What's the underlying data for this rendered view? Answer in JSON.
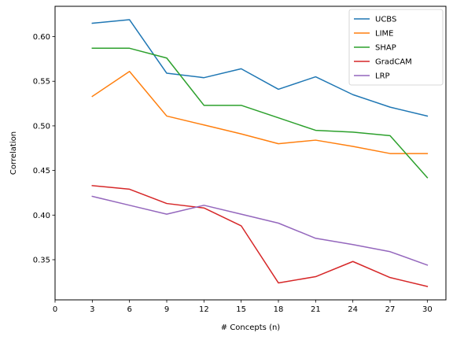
{
  "chart_data": {
    "type": "line",
    "xlabel": "# Concepts (n)",
    "ylabel": "Correlation",
    "x": [
      3,
      6,
      9,
      12,
      15,
      18,
      21,
      24,
      27,
      30
    ],
    "xticks": [
      0,
      3,
      6,
      9,
      12,
      15,
      18,
      21,
      24,
      27,
      30
    ],
    "xlim": [
      0,
      31.5
    ],
    "yticks": [
      0.35,
      0.4,
      0.45,
      0.5,
      0.55,
      0.6
    ],
    "ytick_labels": [
      "0.35",
      "0.40",
      "0.45",
      "0.50",
      "0.55",
      "0.60"
    ],
    "ylim": [
      0.305,
      0.634
    ],
    "grid": false,
    "legend_position": "top-right",
    "series": [
      {
        "name": "UCBS",
        "color": "#1f77b4",
        "values": [
          0.615,
          0.619,
          0.559,
          0.554,
          0.564,
          0.541,
          0.555,
          0.535,
          0.521,
          0.511
        ]
      },
      {
        "name": "LIME",
        "color": "#ff7f0e",
        "values": [
          0.533,
          0.561,
          0.511,
          0.501,
          0.491,
          0.48,
          0.484,
          0.477,
          0.469,
          0.469
        ]
      },
      {
        "name": "SHAP",
        "color": "#2ca02c",
        "values": [
          0.587,
          0.587,
          0.576,
          0.523,
          0.523,
          0.509,
          0.495,
          0.493,
          0.489,
          0.442
        ]
      },
      {
        "name": "GradCAM",
        "color": "#d62728",
        "values": [
          0.433,
          0.429,
          0.413,
          0.408,
          0.388,
          0.324,
          0.331,
          0.348,
          0.33,
          0.32
        ]
      },
      {
        "name": "LRP",
        "color": "#9467bd",
        "values": [
          0.421,
          0.411,
          0.401,
          0.411,
          0.401,
          0.391,
          0.374,
          0.367,
          0.359,
          0.344
        ]
      }
    ]
  }
}
